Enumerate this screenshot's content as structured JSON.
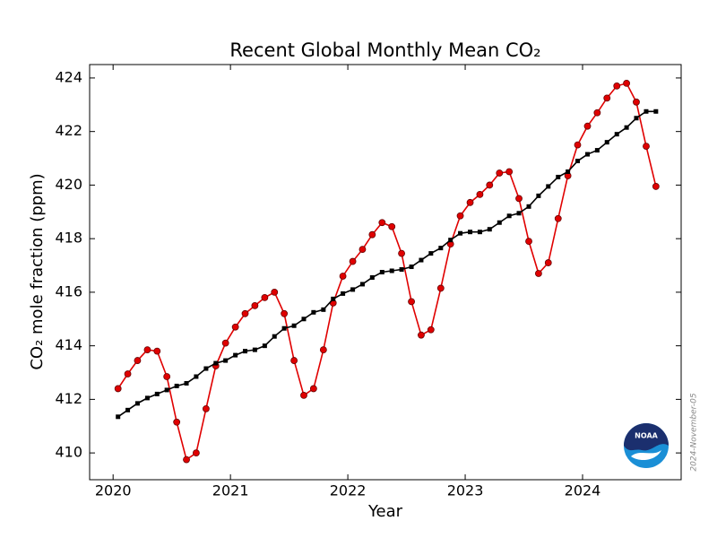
{
  "chart_data": {
    "type": "line",
    "title": "Recent Global Monthly Mean CO₂",
    "x_label": "Year",
    "y_label": "CO₂ mole fraction (ppm)",
    "annotation": "2024-November-05",
    "logo_text": "NOAA",
    "xlim": [
      2019.8,
      2024.84
    ],
    "ylim": [
      409.0,
      424.5
    ],
    "xticks": [
      2020,
      2021,
      2022,
      2023,
      2024
    ],
    "yticks": [
      410,
      412,
      414,
      416,
      418,
      420,
      422,
      424
    ],
    "x": [
      2020.042,
      2020.125,
      2020.208,
      2020.292,
      2020.375,
      2020.458,
      2020.542,
      2020.625,
      2020.708,
      2020.792,
      2020.875,
      2020.958,
      2021.042,
      2021.125,
      2021.208,
      2021.292,
      2021.375,
      2021.458,
      2021.542,
      2021.625,
      2021.708,
      2021.792,
      2021.875,
      2021.958,
      2022.042,
      2022.125,
      2022.208,
      2022.292,
      2022.375,
      2022.458,
      2022.542,
      2022.625,
      2022.708,
      2022.792,
      2022.875,
      2022.958,
      2023.042,
      2023.125,
      2023.208,
      2023.292,
      2023.375,
      2023.458,
      2023.542,
      2023.625,
      2023.708,
      2023.792,
      2023.875,
      2023.958,
      2024.042,
      2024.125,
      2024.208,
      2024.292,
      2024.375,
      2024.458,
      2024.542,
      2024.625
    ],
    "series": [
      {
        "color": "#e00000",
        "marker": "circle",
        "values": [
          412.4,
          412.95,
          413.45,
          413.85,
          413.8,
          412.85,
          411.15,
          409.75,
          410.0,
          411.65,
          413.25,
          414.1,
          414.7,
          415.2,
          415.5,
          415.8,
          416.0,
          415.2,
          413.45,
          412.15,
          412.4,
          413.85,
          415.6,
          416.6,
          417.15,
          417.6,
          418.15,
          418.6,
          418.45,
          417.45,
          415.65,
          414.4,
          414.6,
          416.15,
          417.8,
          418.85,
          419.35,
          419.65,
          420.0,
          420.45,
          420.5,
          419.5,
          417.9,
          416.7,
          417.1,
          418.75,
          420.35,
          421.5,
          422.2,
          422.7,
          423.25,
          423.7,
          423.8,
          423.1,
          421.45,
          419.95
        ]
      },
      {
        "color": "#000000",
        "marker": "square",
        "values": [
          411.35,
          411.6,
          411.85,
          412.05,
          412.2,
          412.35,
          412.5,
          412.6,
          412.85,
          413.15,
          413.35,
          413.45,
          413.65,
          413.8,
          413.85,
          414.0,
          414.35,
          414.65,
          414.75,
          415.0,
          415.25,
          415.35,
          415.75,
          415.95,
          416.1,
          416.3,
          416.55,
          416.75,
          416.8,
          416.85,
          416.95,
          417.2,
          417.45,
          417.65,
          417.95,
          418.2,
          418.25,
          418.25,
          418.35,
          418.6,
          418.85,
          418.95,
          419.2,
          419.6,
          419.95,
          420.3,
          420.5,
          420.9,
          421.15,
          421.3,
          421.6,
          421.9,
          422.15,
          422.5,
          422.75,
          422.75
        ]
      }
    ]
  }
}
